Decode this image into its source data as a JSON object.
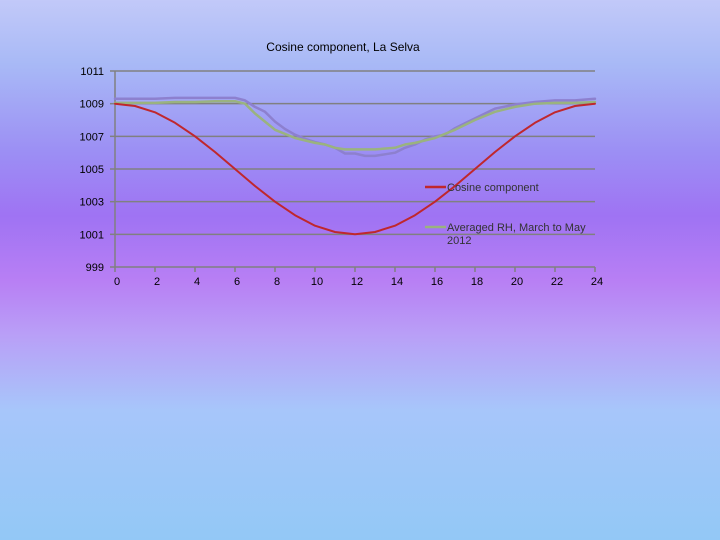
{
  "chart_data": {
    "type": "line",
    "title": "Cosine component, La Selva",
    "xlabel": "",
    "ylabel": "",
    "xlim": [
      0,
      24
    ],
    "ylim": [
      999,
      1011
    ],
    "x_ticks": [
      "0",
      "2",
      "4",
      "6",
      "8",
      "10",
      "12",
      "14",
      "16",
      "18",
      "20",
      "22",
      "24"
    ],
    "y_ticks": [
      "1011",
      "1009",
      "1007",
      "1005",
      "1003",
      "1001",
      "999"
    ],
    "grid": "horizontal",
    "legend_position": "right",
    "colors": {
      "cosine": "#c0272d",
      "rh": "#9ab37f",
      "third": "#8d80cf",
      "grid": "#808080"
    },
    "series": [
      {
        "name": "Cosine component",
        "legend_lines": [
          "Cosine component"
        ],
        "color": "#c0272d",
        "x": [
          0,
          1,
          2,
          3,
          4,
          5,
          6,
          7,
          8,
          9,
          10,
          11,
          12,
          13,
          14,
          15,
          16,
          17,
          18,
          19,
          20,
          21,
          22,
          23,
          24
        ],
        "values": [
          1009.0,
          1008.86,
          1008.47,
          1007.83,
          1007.0,
          1006.04,
          1005.0,
          1003.96,
          1003.0,
          1002.17,
          1001.53,
          1001.14,
          1001.0,
          1001.14,
          1001.53,
          1002.17,
          1003.0,
          1003.96,
          1005.0,
          1006.04,
          1007.0,
          1007.83,
          1008.47,
          1008.86,
          1009.0
        ]
      },
      {
        "name": "Averaged RH, March to May 2012",
        "legend_lines": [
          "Averaged RH, March to May",
          "2012"
        ],
        "color": "#9ab37f",
        "x": [
          0,
          1,
          2,
          3,
          4,
          5,
          6,
          6.5,
          7,
          7.5,
          8,
          9,
          10,
          10.5,
          11,
          11.5,
          12,
          12.5,
          13,
          14,
          14.5,
          15,
          16,
          17,
          18,
          19,
          20,
          21,
          22,
          23,
          24
        ],
        "values": [
          1009.05,
          1009.05,
          1009.05,
          1009.1,
          1009.1,
          1009.15,
          1009.15,
          1009.0,
          1008.4,
          1007.9,
          1007.4,
          1006.9,
          1006.6,
          1006.5,
          1006.3,
          1006.2,
          1006.2,
          1006.2,
          1006.2,
          1006.3,
          1006.5,
          1006.6,
          1006.9,
          1007.4,
          1008.0,
          1008.5,
          1008.8,
          1009.0,
          1009.05,
          1009.05,
          1009.1
        ]
      },
      {
        "name": "",
        "legend_lines": [],
        "color": "#8d80cf",
        "x": [
          0,
          1,
          2,
          3,
          4,
          5,
          6,
          6.5,
          7,
          7.5,
          8,
          8.5,
          9,
          9.5,
          10,
          10.5,
          11,
          11.5,
          12,
          12.5,
          13,
          13.5,
          14,
          14.5,
          15,
          15.5,
          16,
          16.5,
          17,
          17.5,
          18,
          18.5,
          19,
          20,
          21,
          22,
          23,
          24
        ],
        "values": [
          1009.3,
          1009.3,
          1009.3,
          1009.35,
          1009.35,
          1009.35,
          1009.35,
          1009.2,
          1008.8,
          1008.5,
          1007.9,
          1007.45,
          1007.1,
          1006.85,
          1006.65,
          1006.5,
          1006.3,
          1005.95,
          1005.95,
          1005.8,
          1005.8,
          1005.9,
          1006.0,
          1006.3,
          1006.5,
          1006.8,
          1007.0,
          1007.1,
          1007.5,
          1007.8,
          1008.1,
          1008.4,
          1008.7,
          1008.95,
          1009.1,
          1009.2,
          1009.2,
          1009.3
        ]
      }
    ]
  }
}
